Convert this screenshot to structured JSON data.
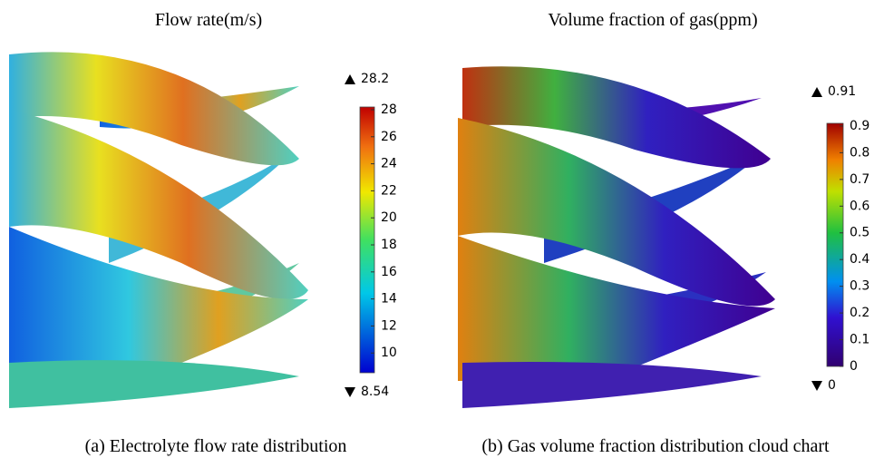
{
  "panels": [
    {
      "title": "Flow rate(m/s)",
      "caption": "(a) Electrolyte flow rate distribution",
      "colorbar": {
        "max": 28.2,
        "min": 8.54,
        "ticks": [
          10,
          12,
          14,
          16,
          18,
          20,
          22,
          24,
          26,
          28
        ]
      }
    },
    {
      "title": "Volume fraction of gas(ppm)",
      "caption": "(b) Gas volume fraction distribution cloud chart",
      "colorbar": {
        "max": 0.91,
        "min": 0,
        "ticks": [
          0,
          0.1,
          0.2,
          0.3,
          0.4,
          0.5,
          0.6,
          0.7,
          0.8,
          0.9
        ]
      }
    }
  ]
}
